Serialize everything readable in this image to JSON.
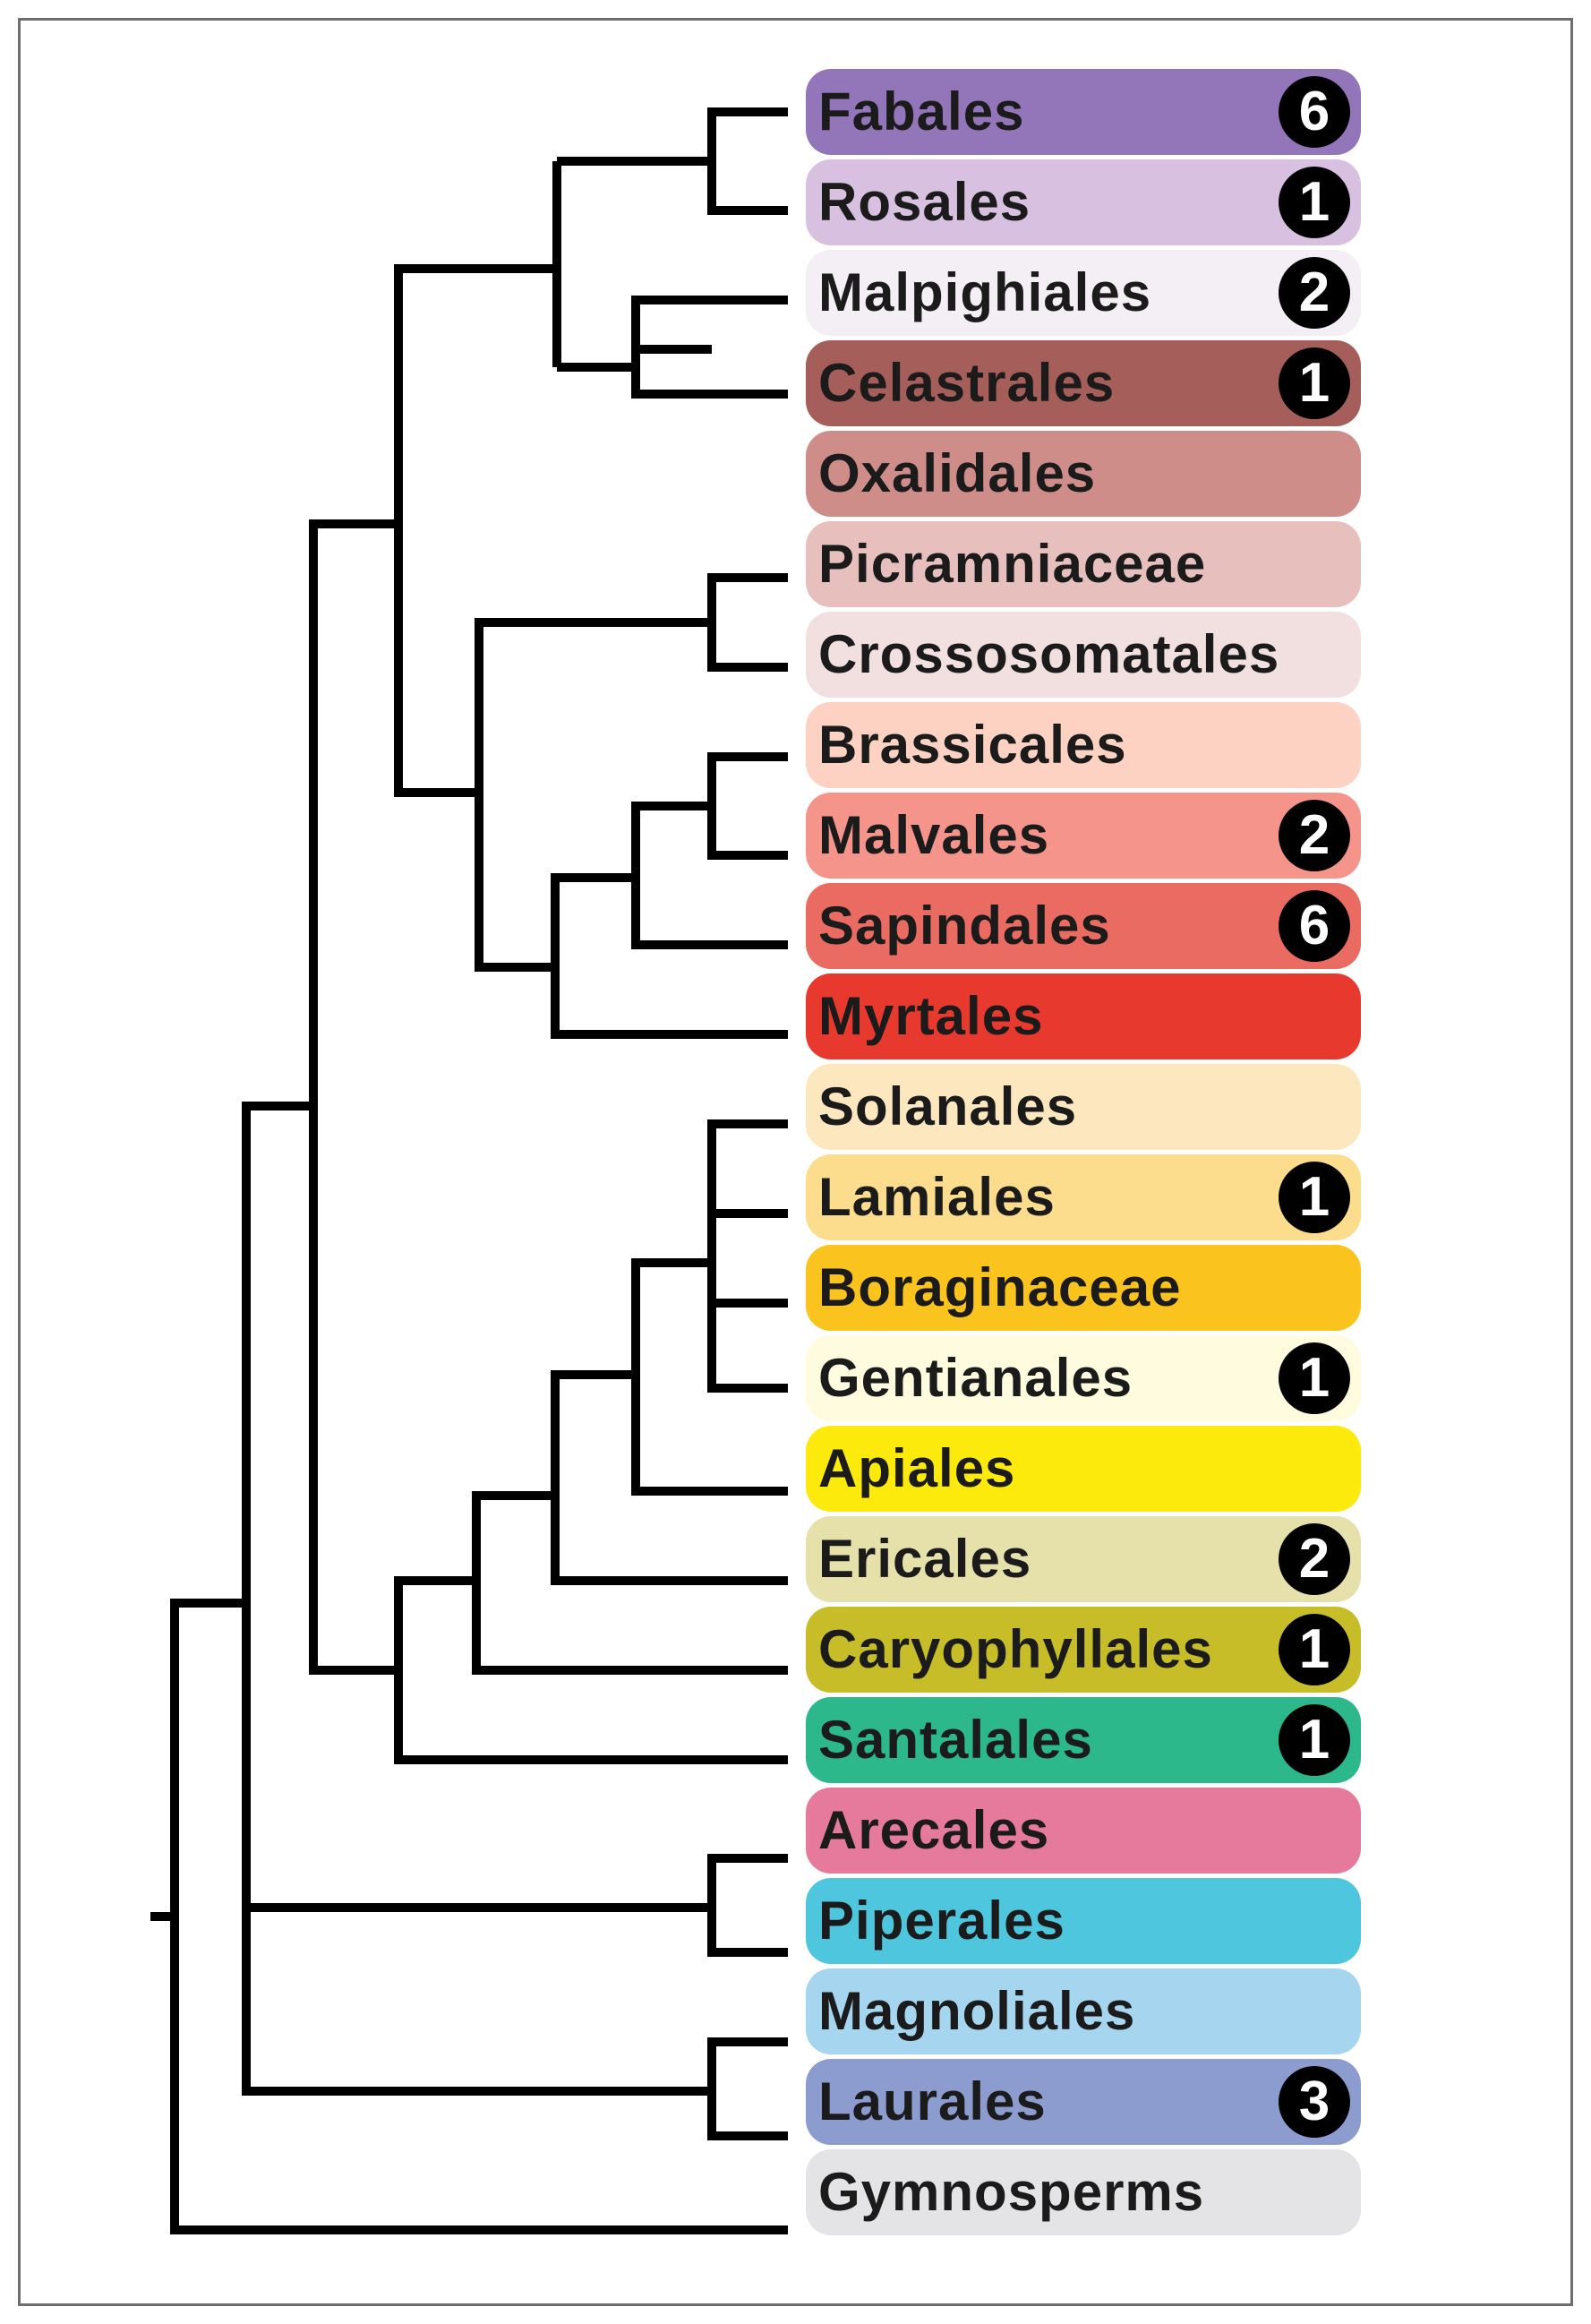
{
  "tree": {
    "taxa": [
      {
        "name": "Fabales",
        "color": "#9375b9",
        "count": "6"
      },
      {
        "name": "Rosales",
        "color": "#d8c1e0",
        "count": "1"
      },
      {
        "name": "Malpighiales",
        "color": "#f4eff5",
        "count": "2"
      },
      {
        "name": "Celastrales",
        "color": "#a65e5a",
        "count": "1"
      },
      {
        "name": "Oxalidales",
        "color": "#cf8d8a",
        "count": ""
      },
      {
        "name": "Picramniaceae",
        "color": "#e7c0bd",
        "count": ""
      },
      {
        "name": "Crossosomatales",
        "color": "#f1e0df",
        "count": ""
      },
      {
        "name": "Brassicales",
        "color": "#fdd2c3",
        "count": ""
      },
      {
        "name": "Malvales",
        "color": "#f5948a",
        "count": "2"
      },
      {
        "name": "Sapindales",
        "color": "#ea6b62",
        "count": "6"
      },
      {
        "name": "Myrtales",
        "color": "#e8392f",
        "count": ""
      },
      {
        "name": "Solanales",
        "color": "#fde7bf",
        "count": ""
      },
      {
        "name": "Lamiales",
        "color": "#fcdc8d",
        "count": "1"
      },
      {
        "name": "Boraginaceae",
        "color": "#fbc31d",
        "count": ""
      },
      {
        "name": "Gentianales",
        "color": "#fefbdf",
        "count": "1"
      },
      {
        "name": "Apiales",
        "color": "#fcea0d",
        "count": ""
      },
      {
        "name": "Ericales",
        "color": "#e6e0ab",
        "count": "2"
      },
      {
        "name": "Caryophyllales",
        "color": "#c6bd29",
        "count": "1"
      },
      {
        "name": "Santalales",
        "color": "#2db88b",
        "count": "1"
      },
      {
        "name": "Arecales",
        "color": "#e57a9c",
        "count": ""
      },
      {
        "name": "Piperales",
        "color": "#4ec7de",
        "count": ""
      },
      {
        "name": "Magnoliales",
        "color": "#a5d5ef",
        "count": ""
      },
      {
        "name": "Laurales",
        "color": "#8d9ccf",
        "count": "3"
      },
      {
        "name": "Gymnosperms",
        "color": "#e4e4e6",
        "count": ""
      }
    ]
  }
}
